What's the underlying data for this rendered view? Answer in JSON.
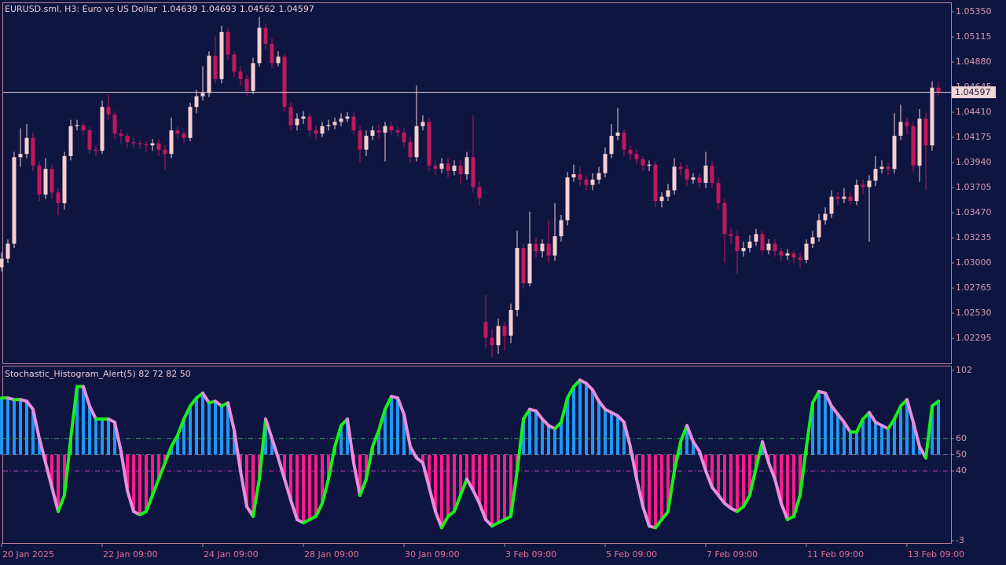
{
  "chart_data": [
    {
      "type": "candlestick",
      "title": "EURUSD.sml, H3:  Euro vs US Dollar",
      "categories": [
        "20 Jan 2025",
        null,
        null,
        null,
        null,
        null,
        null,
        null,
        null,
        null,
        null,
        null,
        null,
        null,
        null,
        null,
        "22 Jan 09:00",
        null,
        null,
        null,
        null,
        null,
        null,
        null,
        null,
        null,
        null,
        null,
        null,
        null,
        null,
        null,
        "24 Jan 09:00",
        null,
        null,
        null,
        null,
        null,
        null,
        null,
        null,
        null,
        null,
        null,
        null,
        null,
        null,
        null,
        "28 Jan 09:00",
        null,
        null,
        null,
        null,
        null,
        null,
        null,
        null,
        null,
        null,
        null,
        null,
        null,
        null,
        null,
        "30 Jan 09:00",
        null,
        null,
        null,
        null,
        null,
        null,
        null,
        null,
        null,
        null,
        null,
        null,
        null,
        null,
        null,
        "3 Feb 09:00",
        null,
        null,
        null,
        null,
        null,
        null,
        null,
        null,
        null,
        null,
        null,
        null,
        null,
        null,
        null,
        "5 Feb 09:00",
        null,
        null,
        null,
        null,
        null,
        null,
        null,
        null,
        null,
        null,
        null,
        null,
        null,
        null,
        null,
        "7 Feb 09:00",
        null,
        null,
        null,
        null,
        null,
        null,
        null,
        null,
        null,
        null,
        null,
        null,
        null,
        null,
        null,
        "11 Feb 09:00",
        null,
        null,
        null,
        null,
        null,
        null,
        null,
        null,
        null,
        null,
        null,
        null,
        null,
        null,
        null,
        "13 Feb 09:00",
        null,
        null,
        null,
        null,
        null
      ],
      "open": [
        1.0296,
        1.0304,
        1.0318,
        1.0399,
        1.0402,
        1.0417,
        1.0391,
        1.0364,
        1.0388,
        1.0366,
        1.0356,
        1.04,
        1.0428,
        1.0429,
        1.0424,
        1.0406,
        1.0405,
        1.0446,
        1.0439,
        1.0421,
        1.0419,
        1.0413,
        1.0412,
        1.0411,
        1.041,
        1.0412,
        1.0406,
        1.0402,
        1.0424,
        1.0421,
        1.0417,
        1.0446,
        1.0456,
        1.0459,
        1.0494,
        1.0472,
        1.0516,
        1.0495,
        1.0479,
        1.0472,
        1.0461,
        1.0487,
        1.052,
        1.0505,
        1.0487,
        1.0493,
        1.0446,
        1.0429,
        1.0435,
        1.0437,
        1.0424,
        1.0421,
        1.0428,
        1.0429,
        1.0432,
        1.0435,
        1.0437,
        1.0424,
        1.0406,
        1.0419,
        1.0424,
        1.0422,
        1.0428,
        1.0424,
        1.0422,
        1.0413,
        1.0399,
        1.0428,
        1.0432,
        1.0391,
        1.0388,
        1.0393,
        1.0386,
        1.0391,
        1.0383,
        1.0399,
        1.0371,
        1.0245,
        1.023,
        1.0223,
        1.0241,
        1.0232,
        1.0256,
        1.0314,
        1.0281,
        1.0318,
        1.0311,
        1.0318,
        1.0307,
        1.0325,
        1.034,
        1.038,
        1.0383,
        1.0378,
        1.0373,
        1.0378,
        1.0384,
        1.0402,
        1.0419,
        1.0422,
        1.0406,
        1.0402,
        1.0397,
        1.0391,
        1.0392,
        1.0358,
        1.0362,
        1.0368,
        1.039,
        1.0388,
        1.0378,
        1.038,
        1.0375,
        1.0391,
        1.0375,
        1.0356,
        1.0327,
        1.0325,
        1.0311,
        1.0314,
        1.032,
        1.0327,
        1.0312,
        1.0318,
        1.0311,
        1.0307,
        1.0309,
        1.0305,
        1.0303,
        1.0318,
        1.0324,
        1.034,
        1.0346,
        1.0362,
        1.036,
        1.0362,
        1.0358,
        1.0373,
        1.0371,
        1.0377,
        1.0388,
        1.039,
        1.0388,
        1.0419,
        1.0432,
        1.0428,
        1.0391,
        1.0435,
        1.041,
        1.04639
      ],
      "high": [
        1.031,
        1.0322,
        1.0404,
        1.0426,
        1.043,
        1.0422,
        1.0395,
        1.0398,
        1.0392,
        1.037,
        1.0404,
        1.0434,
        1.0434,
        1.0432,
        1.0428,
        1.041,
        1.0452,
        1.0458,
        1.0442,
        1.0425,
        1.0422,
        1.0418,
        1.0415,
        1.0414,
        1.0416,
        1.0416,
        1.041,
        1.0436,
        1.0428,
        1.0424,
        1.045,
        1.0462,
        1.0484,
        1.0498,
        1.0512,
        1.0522,
        1.052,
        1.0498,
        1.0484,
        1.0476,
        1.0492,
        1.053,
        1.0524,
        1.051,
        1.0498,
        1.0496,
        1.045,
        1.044,
        1.0442,
        1.044,
        1.0428,
        1.0432,
        1.0434,
        1.0436,
        1.044,
        1.0441,
        1.0441,
        1.0428,
        1.0424,
        1.0428,
        1.043,
        1.0432,
        1.0432,
        1.0428,
        1.0426,
        1.0418,
        1.0466,
        1.0438,
        1.0436,
        1.0396,
        1.0398,
        1.0398,
        1.0396,
        1.0396,
        1.0404,
        1.0438,
        1.0376,
        1.027,
        1.0238,
        1.0248,
        1.0245,
        1.0262,
        1.033,
        1.0318,
        1.0348,
        1.0324,
        1.0322,
        1.034,
        1.0356,
        1.0345,
        1.0385,
        1.0392,
        1.039,
        1.0382,
        1.0384,
        1.039,
        1.0408,
        1.043,
        1.0445,
        1.0425,
        1.041,
        1.0406,
        1.04,
        1.0396,
        1.0395,
        1.0366,
        1.0374,
        1.0398,
        1.0394,
        1.0392,
        1.0384,
        1.0384,
        1.0404,
        1.0395,
        1.038,
        1.036,
        1.0332,
        1.033,
        1.032,
        1.0326,
        1.0332,
        1.033,
        1.0322,
        1.0322,
        1.0314,
        1.0313,
        1.0312,
        1.031,
        1.0322,
        1.033,
        1.0346,
        1.0352,
        1.0368,
        1.0366,
        1.037,
        1.0366,
        1.0378,
        1.0378,
        1.0382,
        1.04,
        1.0396,
        1.0394,
        1.044,
        1.0448,
        1.0436,
        1.0432,
        1.0444,
        1.044,
        1.047,
        1.04693
      ],
      "low": [
        1.0292,
        1.03,
        1.0314,
        1.039,
        1.0398,
        1.0386,
        1.0358,
        1.036,
        1.036,
        1.0345,
        1.035,
        1.0396,
        1.0424,
        1.042,
        1.0402,
        1.04,
        1.0402,
        1.0434,
        1.0416,
        1.0412,
        1.0408,
        1.0408,
        1.0407,
        1.0404,
        1.0405,
        1.04,
        1.0387,
        1.0398,
        1.0416,
        1.0412,
        1.0414,
        1.044,
        1.0452,
        1.0455,
        1.0468,
        1.0468,
        1.049,
        1.0474,
        1.0466,
        1.0456,
        1.0458,
        1.0484,
        1.05,
        1.0482,
        1.0484,
        1.0442,
        1.0424,
        1.0424,
        1.043,
        1.0418,
        1.0415,
        1.0418,
        1.0424,
        1.0425,
        1.0428,
        1.0432,
        1.042,
        1.0394,
        1.04,
        1.0415,
        1.0416,
        1.0395,
        1.042,
        1.0418,
        1.0408,
        1.0394,
        1.0395,
        1.0424,
        1.0386,
        1.0382,
        1.0384,
        1.038,
        1.0382,
        1.0374,
        1.0378,
        1.0366,
        1.0354,
        1.022,
        1.0212,
        1.0215,
        1.0218,
        1.0225,
        1.025,
        1.0276,
        1.0278,
        1.0305,
        1.0305,
        1.03,
        1.0302,
        1.032,
        1.0335,
        1.0376,
        1.0372,
        1.0368,
        1.0368,
        1.0374,
        1.038,
        1.0398,
        1.0415,
        1.04,
        1.0396,
        1.0392,
        1.0386,
        1.0386,
        1.0352,
        1.0352,
        1.0358,
        1.0364,
        1.0382,
        1.0372,
        1.0374,
        1.037,
        1.037,
        1.037,
        1.035,
        1.03,
        1.0318,
        1.029,
        1.0306,
        1.031,
        1.0316,
        1.0308,
        1.0308,
        1.0306,
        1.0302,
        1.0303,
        1.03,
        1.0296,
        1.03,
        1.0314,
        1.032,
        1.0336,
        1.0342,
        1.0354,
        1.0356,
        1.0354,
        1.0354,
        1.0364,
        1.032,
        1.0372,
        1.0384,
        1.0382,
        1.0384,
        1.0415,
        1.042,
        1.0385,
        1.0376,
        1.0368,
        1.0405,
        1.04562
      ],
      "close": [
        1.0304,
        1.0318,
        1.0399,
        1.0402,
        1.0417,
        1.0391,
        1.0364,
        1.0388,
        1.0366,
        1.0356,
        1.04,
        1.0428,
        1.0429,
        1.0424,
        1.0406,
        1.0405,
        1.0446,
        1.0439,
        1.0421,
        1.0419,
        1.0413,
        1.0412,
        1.0411,
        1.041,
        1.0412,
        1.0406,
        1.0402,
        1.0424,
        1.0421,
        1.0417,
        1.0446,
        1.0456,
        1.0459,
        1.0494,
        1.0472,
        1.0516,
        1.0495,
        1.0479,
        1.0472,
        1.0461,
        1.0487,
        1.052,
        1.0505,
        1.0487,
        1.0493,
        1.0446,
        1.0429,
        1.0435,
        1.0437,
        1.0424,
        1.0421,
        1.0428,
        1.0429,
        1.0432,
        1.0435,
        1.0437,
        1.0424,
        1.0406,
        1.0419,
        1.0424,
        1.0422,
        1.0428,
        1.0424,
        1.0422,
        1.0413,
        1.0399,
        1.0428,
        1.0432,
        1.0391,
        1.0388,
        1.0393,
        1.0386,
        1.0391,
        1.0383,
        1.0399,
        1.0371,
        1.0361,
        1.023,
        1.0223,
        1.0241,
        1.0232,
        1.0256,
        1.0314,
        1.0281,
        1.0318,
        1.0311,
        1.0318,
        1.0307,
        1.0325,
        1.034,
        1.038,
        1.0383,
        1.0378,
        1.0373,
        1.0378,
        1.0384,
        1.0402,
        1.0419,
        1.0422,
        1.0406,
        1.0402,
        1.0397,
        1.0391,
        1.0392,
        1.0358,
        1.0362,
        1.0368,
        1.039,
        1.0388,
        1.0378,
        1.038,
        1.0375,
        1.0391,
        1.0375,
        1.0356,
        1.0327,
        1.0325,
        1.0311,
        1.0314,
        1.032,
        1.0327,
        1.0312,
        1.0318,
        1.0311,
        1.0307,
        1.0309,
        1.0305,
        1.0303,
        1.0318,
        1.0324,
        1.034,
        1.0346,
        1.0362,
        1.036,
        1.0362,
        1.0358,
        1.0373,
        1.0371,
        1.0377,
        1.0388,
        1.039,
        1.0388,
        1.0419,
        1.0432,
        1.0428,
        1.0391,
        1.0435,
        1.041,
        1.0464,
        1.04597
      ],
      "up_color": "#f7cfcf",
      "down_color": "#c2185b",
      "price_line_color": "#f0d6d6",
      "ylim": [
        1.02061,
        1.05431
      ],
      "yticks": [
        {
          "value": 1.0535,
          "label": "1.05350"
        },
        1.05115,
        {
          "value": 1.0488,
          "label": "1.04880"
        },
        1.04645,
        {
          "value": 1.0441,
          "label": "1.04410"
        },
        1.04175,
        {
          "value": 1.0394,
          "label": "1.03940"
        },
        1.03705,
        {
          "value": 1.0347,
          "label": "1.03470"
        },
        1.03235,
        {
          "value": 1.03,
          "label": "1.03000"
        },
        1.02765,
        {
          "value": 1.0253,
          "label": "1.02530"
        },
        1.02295
      ]
    },
    {
      "type": "histogram",
      "title": "Stochastic_Histogram_Alert(5) 82 72 82 50",
      "values": [
        85,
        85,
        84,
        84,
        83,
        78,
        60,
        45,
        30,
        15,
        25,
        60,
        92,
        92,
        80,
        72,
        72,
        72,
        70,
        52,
        28,
        15,
        13,
        15,
        25,
        35,
        45,
        55,
        62,
        72,
        80,
        85,
        88,
        82,
        83,
        80,
        82,
        65,
        40,
        18,
        12,
        35,
        72,
        60,
        48,
        35,
        22,
        10,
        8,
        10,
        12,
        20,
        35,
        55,
        68,
        72,
        45,
        25,
        35,
        55,
        65,
        78,
        86,
        85,
        75,
        55,
        48,
        45,
        30,
        15,
        5,
        12,
        15,
        25,
        35,
        28,
        20,
        10,
        6,
        8,
        10,
        12,
        40,
        72,
        78,
        77,
        72,
        68,
        66,
        70,
        85,
        92,
        96,
        94,
        90,
        83,
        78,
        76,
        74,
        70,
        55,
        35,
        18,
        6,
        5,
        10,
        15,
        40,
        58,
        68,
        58,
        52,
        40,
        30,
        25,
        20,
        17,
        15,
        18,
        25,
        42,
        58,
        45,
        35,
        20,
        10,
        12,
        25,
        55,
        82,
        89,
        88,
        80,
        75,
        70,
        64,
        64,
        72,
        76,
        70,
        68,
        66,
        72,
        80,
        84,
        70,
        55,
        48,
        80,
        83
      ],
      "base": 50,
      "up_color": "#2196f3",
      "down_color": "#ff1a8c",
      "rise_color": "#19f019",
      "fall_color": "#e88ee0",
      "levels": [
        60,
        50,
        40
      ],
      "level_colors": [
        "#2fa84f",
        "#7a7aa0",
        "#c03cc0"
      ],
      "ylim": [
        -3,
        102
      ],
      "yticks": [
        102,
        60,
        50,
        40,
        -3
      ]
    }
  ]
}
